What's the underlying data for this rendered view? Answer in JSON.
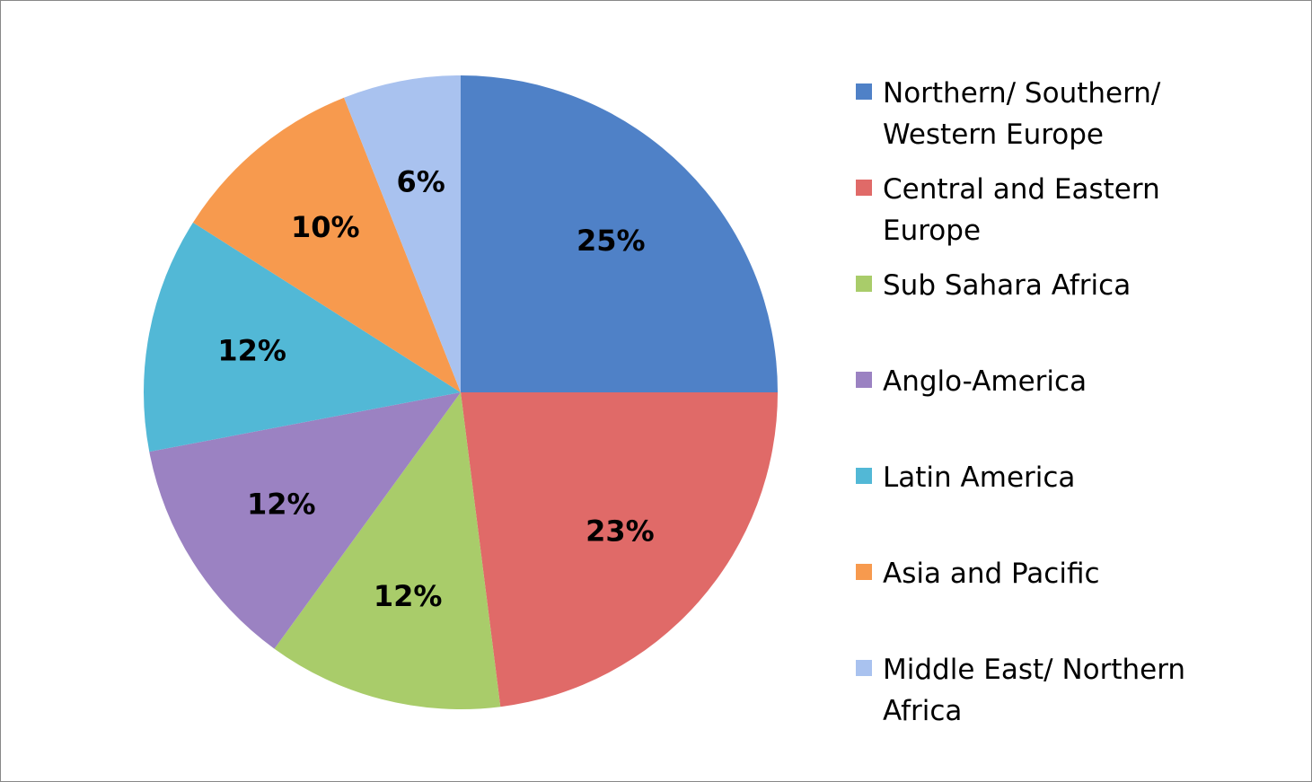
{
  "chart_data": {
    "type": "pie",
    "categories": [
      "Northern/ Southern/ Western Europe",
      "Central and Eastern Europe",
      "Sub Sahara Africa",
      "Anglo-America",
      "Latin America",
      "Asia and Pacific",
      "Middle East/ Northern Africa"
    ],
    "values": [
      25,
      23,
      12,
      12,
      12,
      10,
      6
    ],
    "value_labels": [
      "25%",
      "23%",
      "12%",
      "12%",
      "12%",
      "10%",
      "6%"
    ],
    "colors": [
      "#4f81c7",
      "#e06a68",
      "#a9cc6a",
      "#9b82c2",
      "#52b8d6",
      "#f79a4e",
      "#a9c2ef"
    ],
    "legend": "right"
  }
}
